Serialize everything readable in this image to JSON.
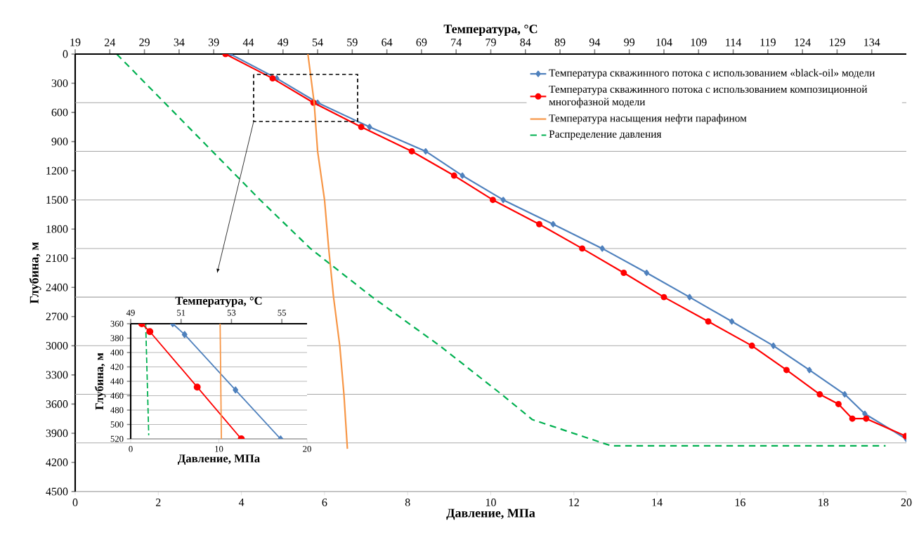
{
  "chart_data": [
    {
      "type": "line",
      "xlabel": "Давление, МПа",
      "x2label": "Температура, °C",
      "ylabel": "Глубина, м",
      "xlim": [
        0,
        20
      ],
      "xticks": [
        0,
        2,
        4,
        6,
        8,
        10,
        12,
        14,
        16,
        18,
        20
      ],
      "x2lim": [
        19,
        139
      ],
      "x2ticks": [
        19,
        24,
        29,
        34,
        39,
        44,
        49,
        54,
        59,
        64,
        69,
        74,
        79,
        84,
        89,
        94,
        99,
        104,
        109,
        114,
        119,
        124,
        129,
        134
      ],
      "ylim": [
        4500,
        0
      ],
      "yticks": [
        0,
        300,
        600,
        900,
        1200,
        1500,
        1800,
        2100,
        2400,
        2700,
        3000,
        3300,
        3600,
        3900,
        4200,
        4500
      ],
      "legend": "top right",
      "ref_lines": [
        {
          "axis": "y",
          "value": 500,
          "color": "#a6a6a6"
        },
        {
          "axis": "y",
          "value": 1000,
          "color": "#a6a6a6"
        },
        {
          "axis": "y",
          "value": 1500,
          "color": "#a6a6a6"
        },
        {
          "axis": "y",
          "value": 2000,
          "color": "#a6a6a6"
        },
        {
          "axis": "y",
          "value": 2500,
          "color": "#a6a6a6"
        },
        {
          "axis": "y",
          "value": 3000,
          "color": "#a6a6a6"
        },
        {
          "axis": "y",
          "value": 3500,
          "color": "#a6a6a6"
        },
        {
          "axis": "y",
          "value": 4000,
          "color": "#a6a6a6"
        }
      ],
      "series": [
        {
          "name": "Температура скважинного потока с использованием «black-oil» модели",
          "color": "#4f81bd",
          "axis": "x2",
          "marker": "diamond",
          "line_style": "solid",
          "x": [
            41.4,
            48.1,
            54.0,
            61.5,
            69.6,
            74.9,
            80.8,
            88.0,
            95.1,
            101.5,
            107.7,
            113.8,
            119.8,
            125.0,
            130.1,
            133.0,
            139.0
          ],
          "values": [
            0,
            250,
            500,
            750,
            1000,
            1250,
            1500,
            1750,
            2000,
            2250,
            2500,
            2750,
            3000,
            3250,
            3500,
            3700,
            3960
          ]
        },
        {
          "name": "Температура скважинного потока с использованием композиционной многофазной модели",
          "color": "#ff0000",
          "axis": "x2",
          "marker": "circle",
          "line_style": "solid",
          "x": [
            40.7,
            47.5,
            53.4,
            60.3,
            67.6,
            73.7,
            79.3,
            86.0,
            92.2,
            98.2,
            104.0,
            110.4,
            116.7,
            121.7,
            126.5,
            129.2,
            131.2,
            133.2,
            138.9
          ],
          "values": [
            0,
            250,
            500,
            750,
            1000,
            1250,
            1500,
            1750,
            2000,
            2250,
            2500,
            2750,
            3000,
            3250,
            3500,
            3600,
            3750,
            3750,
            3930
          ]
        },
        {
          "name": "Температура насыщения нефти парафином",
          "color": "#f79646",
          "axis": "x2",
          "marker": "none",
          "line_style": "solid",
          "x": [
            52.6,
            53.5,
            54.0,
            55.0,
            55.6,
            56.3,
            57.2,
            57.8,
            58.3
          ],
          "values": [
            0,
            500,
            1000,
            1500,
            2000,
            2500,
            3000,
            3500,
            4060
          ]
        },
        {
          "name": "Распределение давления",
          "color": "#00b050",
          "marker": "none",
          "line_style": "dashed",
          "x": [
            1.0,
            4.45,
            5.66,
            7.15,
            8.77,
            10.26,
            11.0,
            12.9,
            19.5
          ],
          "values": [
            0,
            1500,
            2000,
            2500,
            3000,
            3500,
            3760,
            4030,
            4030
          ]
        }
      ]
    },
    {
      "type": "line",
      "xlabel": "Давление, МПа",
      "x2label": "Температура, °C",
      "ylabel": "Глубина, м",
      "xlim": [
        0,
        20
      ],
      "xticks": [
        0,
        10,
        20
      ],
      "x2lim": [
        49,
        56
      ],
      "x2ticks": [
        49,
        51,
        53,
        55
      ],
      "ylim": [
        520,
        360
      ],
      "yticks": [
        360,
        380,
        400,
        420,
        440,
        460,
        480,
        500,
        520
      ],
      "grid": "y",
      "series": [
        {
          "color": "#4f81bd",
          "axis": "x2",
          "marker": "diamond",
          "line_style": "solid",
          "x": [
            50.67,
            51.14,
            53.16,
            54.95
          ],
          "values": [
            360,
            375,
            452,
            520
          ]
        },
        {
          "color": "#ff0000",
          "axis": "x2",
          "marker": "circle",
          "line_style": "solid",
          "x": [
            49.44,
            49.76,
            51.64,
            53.39
          ],
          "values": [
            360,
            371,
            448,
            520
          ]
        },
        {
          "color": "#f79646",
          "axis": "x2",
          "marker": "none",
          "line_style": "solid",
          "x": [
            52.55,
            52.6
          ],
          "values": [
            360,
            520
          ]
        },
        {
          "color": "#00b050",
          "marker": "none",
          "line_style": "dashed",
          "x": [
            1.7,
            2.05
          ],
          "values": [
            360,
            515
          ]
        }
      ]
    }
  ]
}
